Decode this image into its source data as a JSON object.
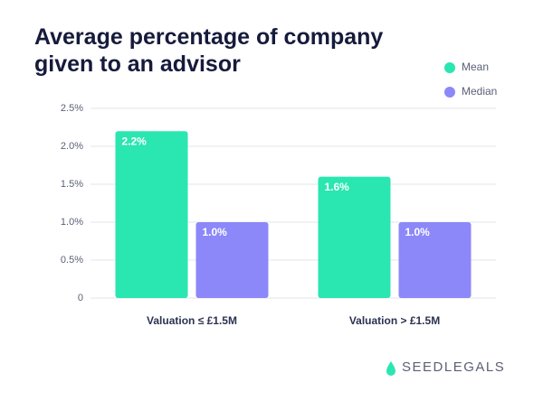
{
  "chart_data": {
    "type": "bar",
    "title": "Average percentage of company given to an advisor",
    "categories": [
      "Valuation ≤ £1.5M",
      "Valuation > £1.5M"
    ],
    "series": [
      {
        "name": "Mean",
        "color": "#2ae6b1",
        "values": [
          2.2,
          1.6
        ],
        "value_labels": [
          "2.2%",
          "1.6%"
        ]
      },
      {
        "name": "Median",
        "color": "#8c88f9",
        "values": [
          1.0,
          1.0
        ],
        "value_labels": [
          "1.0%",
          "1.0%"
        ]
      }
    ],
    "ylim": [
      0,
      2.5
    ],
    "yticks": [
      0,
      {
        "value": 0.5,
        "label": "0.5%"
      },
      {
        "value": 1.0,
        "label": "1.0%"
      },
      {
        "value": 1.5,
        "label": "1.5%"
      },
      {
        "value": 2.0,
        "label": "2.0%"
      },
      {
        "value": 2.5,
        "label": "2.5%"
      }
    ],
    "grid": true,
    "legend": "top-right"
  },
  "brand": "SEEDLEGALS"
}
